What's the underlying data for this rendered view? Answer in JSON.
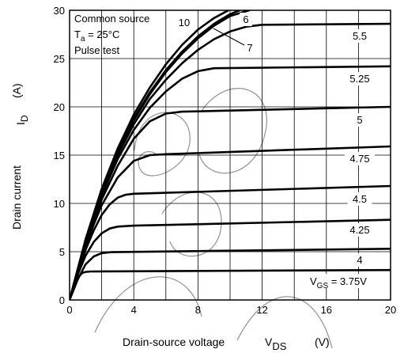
{
  "chart_data": {
    "type": "line",
    "title": "",
    "xlabel": "Drain-source voltage",
    "xsym_main": "V",
    "xsym_sub": "DS",
    "xunit": "(V)",
    "ylabel": "Drain current",
    "ysym": "I",
    "ysym_sub": "D",
    "yunit": "(A)",
    "xlim": [
      0,
      20
    ],
    "ylim": [
      0,
      30
    ],
    "xticks": [
      "0",
      "4",
      "8",
      "12",
      "16",
      "20"
    ],
    "yticks": [
      "0",
      "5",
      "10",
      "15",
      "20",
      "25",
      "30"
    ],
    "grid": true,
    "conditions": {
      "line1": "Common source",
      "line2_main": "T",
      "line2_sub": "a",
      "line2_rest": " = 25°C",
      "line3": "Pulse test"
    },
    "vgs_prefix_main": "V",
    "vgs_prefix_sub": "GS",
    "vgs_prefix_rest": " = 3.75V",
    "series": [
      {
        "name": "3.75",
        "x": [
          0,
          0.25,
          0.5,
          0.8,
          1.0,
          1.3,
          20
        ],
        "y": [
          0,
          1.3,
          2.3,
          2.8,
          2.9,
          2.95,
          3.1
        ]
      },
      {
        "name": "4",
        "x": [
          0,
          0.5,
          1.0,
          1.5,
          2.0,
          2.6,
          20
        ],
        "y": [
          0,
          2.1,
          3.7,
          4.5,
          4.85,
          4.95,
          5.3
        ]
      },
      {
        "name": "4.25",
        "x": [
          0,
          0.5,
          1.0,
          1.5,
          2.0,
          2.5,
          3.0,
          4.0,
          20
        ],
        "y": [
          0,
          2.6,
          4.6,
          6.0,
          6.9,
          7.4,
          7.6,
          7.7,
          8.3
        ]
      },
      {
        "name": "4.5",
        "x": [
          0,
          0.5,
          1.0,
          1.5,
          2.0,
          2.5,
          3.0,
          3.5,
          4.0,
          20
        ],
        "y": [
          0,
          2.8,
          5.2,
          7.2,
          8.8,
          9.9,
          10.6,
          10.9,
          11.0,
          11.8
        ]
      },
      {
        "name": "4.75",
        "x": [
          0,
          0.5,
          1.0,
          1.5,
          2.0,
          3.0,
          4.0,
          5.0,
          6.0,
          20
        ],
        "y": [
          0,
          3.0,
          5.5,
          7.8,
          9.8,
          12.7,
          14.4,
          15.0,
          15.1,
          15.9
        ]
      },
      {
        "name": "5",
        "x": [
          0,
          0.5,
          1.0,
          2.0,
          3.0,
          4.0,
          5.0,
          6.0,
          7.0,
          20
        ],
        "y": [
          0,
          3.1,
          5.8,
          10.4,
          13.9,
          16.7,
          18.5,
          19.3,
          19.5,
          20.0
        ]
      },
      {
        "name": "5.25",
        "x": [
          0,
          1.0,
          2.0,
          3.0,
          4.0,
          5.0,
          6.0,
          7.0,
          8.0,
          9.0,
          20
        ],
        "y": [
          0,
          6.0,
          10.8,
          14.6,
          17.6,
          19.9,
          21.6,
          22.9,
          23.7,
          24.0,
          24.2
        ]
      },
      {
        "name": "5.5",
        "x": [
          0,
          1.0,
          2.0,
          3.0,
          4.0,
          5.0,
          6.0,
          7.0,
          8.0,
          9.0,
          10.0,
          11.0,
          12.0,
          20
        ],
        "y": [
          0,
          6.1,
          11.1,
          15.0,
          18.2,
          20.8,
          22.8,
          24.5,
          25.9,
          27.0,
          27.8,
          28.3,
          28.5,
          28.6
        ]
      },
      {
        "name": "7",
        "x": [
          0,
          1.0,
          2.0,
          3.0,
          4.0,
          5.0,
          6.0,
          7.0,
          8.0,
          9.0,
          10.0,
          10.6
        ],
        "y": [
          0,
          6.2,
          11.3,
          15.4,
          18.8,
          21.5,
          23.8,
          25.7,
          27.3,
          28.6,
          29.6,
          30.0
        ]
      },
      {
        "name": "6",
        "x": [
          0,
          1.0,
          2.0,
          3.0,
          4.0,
          5.0,
          6.0,
          7.0,
          8.0,
          9.0,
          10.0,
          11.2
        ],
        "y": [
          0,
          6.2,
          11.3,
          15.3,
          18.6,
          21.3,
          23.6,
          25.5,
          27.1,
          28.4,
          29.4,
          30.0
        ]
      },
      {
        "name": "10",
        "x": [
          0,
          1.0,
          2.0,
          3.0,
          4.0,
          5.0,
          6.0,
          7.0,
          8.0,
          9.0,
          9.9
        ],
        "y": [
          0,
          6.3,
          11.5,
          15.7,
          19.2,
          22.0,
          24.4,
          26.4,
          28.0,
          29.2,
          30.0
        ]
      }
    ],
    "curve_labels": [
      {
        "series": "3.75",
        "text": "V_GS = 3.75V"
      },
      {
        "series": "4",
        "text": "4"
      },
      {
        "series": "4.25",
        "text": "4.25"
      },
      {
        "series": "4.5",
        "text": "4.5"
      },
      {
        "series": "4.75",
        "text": "4.75"
      },
      {
        "series": "5",
        "text": "5"
      },
      {
        "series": "5.25",
        "text": "5.25"
      },
      {
        "series": "5.5",
        "text": "5.5"
      },
      {
        "series": "6",
        "text": "6"
      },
      {
        "series": "7",
        "text": "7"
      },
      {
        "series": "10",
        "text": "10"
      }
    ]
  }
}
